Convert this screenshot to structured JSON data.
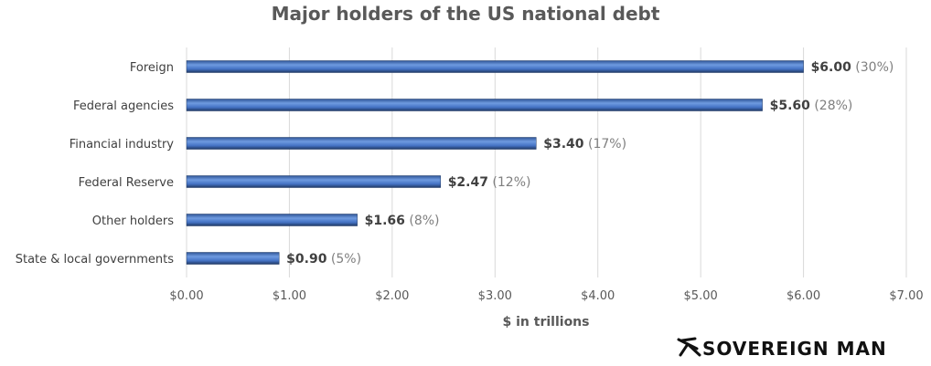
{
  "chart_data": {
    "type": "bar",
    "orientation": "horizontal",
    "title": "Major holders of the US national debt",
    "xlabel": "$ in trillions",
    "ylabel": "",
    "categories": [
      "Foreign",
      "Federal agencies",
      "Financial industry",
      "Federal Reserve",
      "Other holders",
      "State & local governments"
    ],
    "values": [
      6.0,
      5.6,
      3.4,
      2.47,
      1.66,
      0.9
    ],
    "value_labels": [
      "$6.00",
      "$5.60",
      "$3.40",
      "$2.47",
      "$1.66",
      "$0.90"
    ],
    "percent_labels": [
      "(30%)",
      "(28%)",
      "(17%)",
      "(12%)",
      "(8%)",
      "(5%)"
    ],
    "xlim": [
      0,
      7
    ],
    "xticks": [
      "$0.00",
      "$1.00",
      "$2.00",
      "$3.00",
      "$4.00",
      "$5.00",
      "$6.00",
      "$7.00"
    ],
    "grid": "vertical",
    "bar_color": "#4472C4",
    "legend": "none"
  },
  "logo": {
    "text": "SOVEREIGN MAN"
  }
}
